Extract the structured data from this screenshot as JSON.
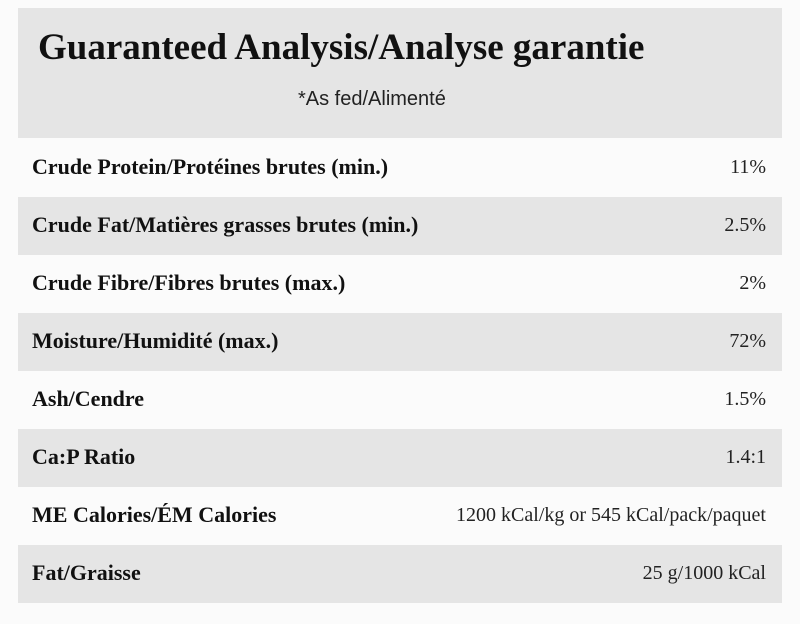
{
  "header": {
    "title": "Guaranteed Analysis/Analyse garantie",
    "subtitle": "*As fed/Alimenté"
  },
  "table": {
    "rows": [
      [
        "Crude Protein/Protéines brutes (min.)",
        "11%"
      ],
      [
        "Crude Fat/Matières grasses brutes (min.)",
        "2.5%"
      ],
      [
        "Crude Fibre/Fibres brutes (max.)",
        "2%"
      ],
      [
        "Moisture/Humidité (max.)",
        "72%"
      ],
      [
        "Ash/Cendre",
        "1.5%"
      ],
      [
        "Ca:P Ratio",
        "1.4:1"
      ],
      [
        "ME Calories/ÉM Calories",
        "1200 kCal/kg or 545 kCal/pack/paquet"
      ],
      [
        "Fat/Graisse",
        "25 g/1000 kCal"
      ]
    ]
  }
}
